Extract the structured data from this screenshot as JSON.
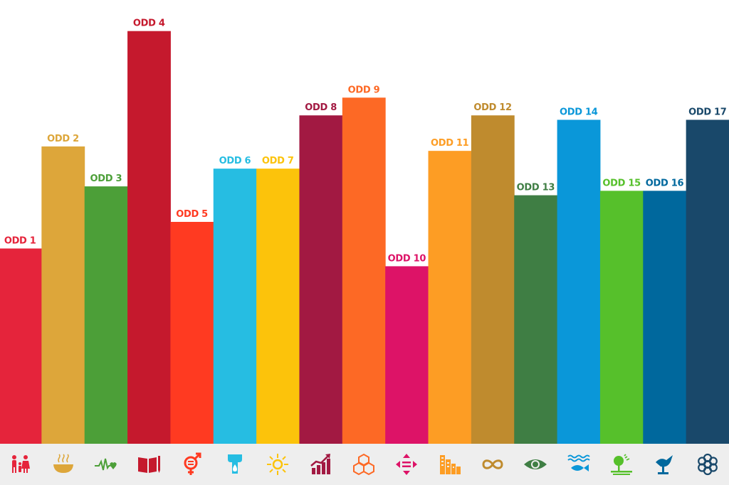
{
  "chart_data": {
    "type": "bar",
    "title": "",
    "xlabel": "",
    "ylabel": "",
    "ylim": [
      0,
      100
    ],
    "categories": [
      "ODD 1",
      "ODD 2",
      "ODD 3",
      "ODD 4",
      "ODD 5",
      "ODD 6",
      "ODD 7",
      "ODD 8",
      "ODD 9",
      "ODD 10",
      "ODD 11",
      "ODD 12",
      "ODD 13",
      "ODD 14",
      "ODD 15",
      "ODD 16",
      "ODD 17"
    ],
    "values": [
      44,
      67,
      58,
      93,
      50,
      62,
      62,
      74,
      78,
      40,
      66,
      74,
      56,
      73,
      57,
      57,
      73
    ],
    "colors": [
      "#e5243b",
      "#dda63a",
      "#4c9f38",
      "#c5192d",
      "#ff3a21",
      "#26bde2",
      "#fcc30b",
      "#a21942",
      "#fd6925",
      "#dd1367",
      "#fd9d24",
      "#bf8b2e",
      "#3f7e44",
      "#0a97d9",
      "#56c02b",
      "#00689d",
      "#19486a"
    ],
    "grid": false,
    "legend": "none"
  },
  "icons": [
    {
      "name": "family-icon",
      "color": "#e5243b"
    },
    {
      "name": "food-bowl-icon",
      "color": "#dda63a"
    },
    {
      "name": "heartbeat-icon",
      "color": "#4c9f38"
    },
    {
      "name": "book-pencil-icon",
      "color": "#c5192d"
    },
    {
      "name": "gender-equality-icon",
      "color": "#ff3a21"
    },
    {
      "name": "water-drop-icon",
      "color": "#26bde2"
    },
    {
      "name": "sun-icon",
      "color": "#fcc30b"
    },
    {
      "name": "growth-chart-icon",
      "color": "#a21942"
    },
    {
      "name": "cubes-icon",
      "color": "#fd6925"
    },
    {
      "name": "equality-arrows-icon",
      "color": "#dd1367"
    },
    {
      "name": "city-buildings-icon",
      "color": "#fd9d24"
    },
    {
      "name": "infinity-icon",
      "color": "#bf8b2e"
    },
    {
      "name": "eye-globe-icon",
      "color": "#3f7e44"
    },
    {
      "name": "fish-waves-icon",
      "color": "#0a97d9"
    },
    {
      "name": "tree-land-icon",
      "color": "#56c02b"
    },
    {
      "name": "dove-gavel-icon",
      "color": "#00689d"
    },
    {
      "name": "partnership-flower-icon",
      "color": "#19486a"
    }
  ]
}
